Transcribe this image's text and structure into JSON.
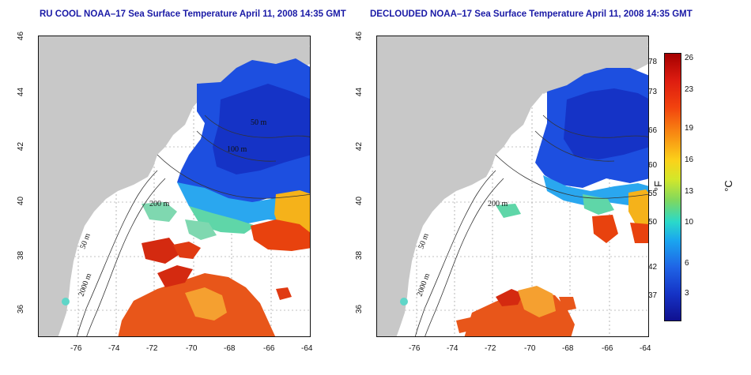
{
  "panels": [
    {
      "title": "RU COOL NOAA–17 Sea Surface Temperature April 11, 2008 14:35 GMT",
      "x_ticks": [
        "-76",
        "-74",
        "-72",
        "-70",
        "-68",
        "-66",
        "-64"
      ],
      "y_ticks": [
        "46",
        "44",
        "42",
        "40",
        "38",
        "36"
      ],
      "contours": [
        "50 m",
        "100 m",
        "200 m",
        "50 m",
        "2000 m"
      ]
    },
    {
      "title": "DECLOUDED NOAA–17 Sea Surface Temperature April 11, 2008 14:35 GMT",
      "x_ticks": [
        "-76",
        "-74",
        "-72",
        "-70",
        "-68",
        "-66",
        "-64"
      ],
      "y_ticks": [
        "46",
        "44",
        "42",
        "40",
        "38",
        "36"
      ],
      "contours": [
        "200 m",
        "50 m",
        "2000 m"
      ]
    }
  ],
  "colorbar": {
    "fahrenheit_label": "°F",
    "celsius_label": "°C",
    "fahrenheit_ticks": [
      "78",
      "73",
      "66",
      "60",
      "55",
      "50",
      "42",
      "37"
    ],
    "celsius_ticks": [
      "26",
      "23",
      "19",
      "16",
      "13",
      "10",
      "6",
      "3"
    ]
  },
  "colors": {
    "land": "#c8c8c8",
    "ocean_no_data": "#ffffff",
    "title": "#1a1aa6",
    "cold": "#1533c6",
    "warm": "#dd1c10"
  },
  "map_data": {
    "type": "sea-surface-temperature-map",
    "lon_range": [
      -77,
      -63
    ],
    "lat_range": [
      35,
      46
    ],
    "grid": true
  }
}
